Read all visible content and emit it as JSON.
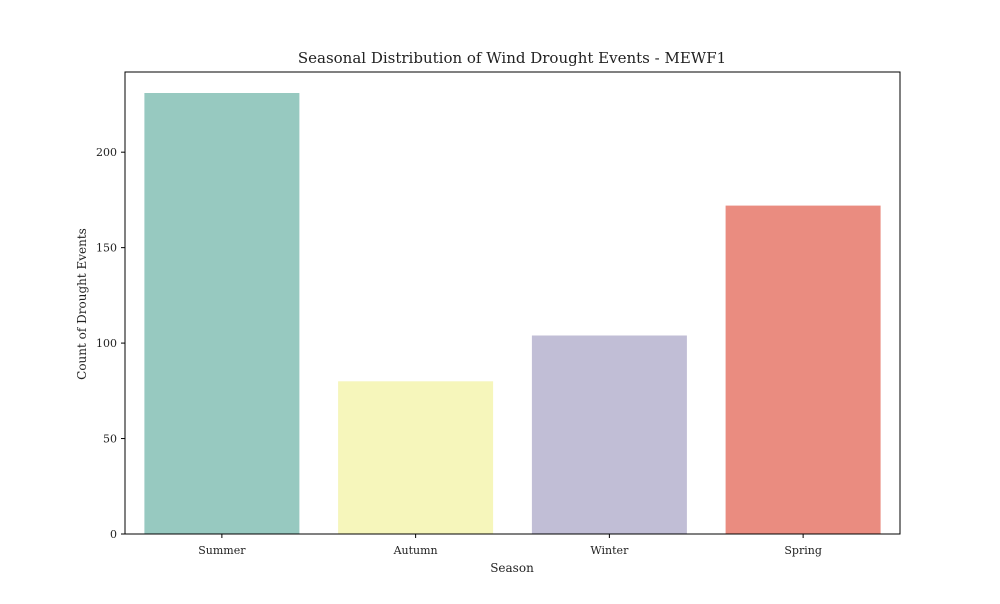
{
  "chart_data": {
    "type": "bar",
    "title": "Seasonal Distribution of Wind Drought Events - MEWF1",
    "xlabel": "Season",
    "ylabel": "Count of Drought Events",
    "categories": [
      "Summer",
      "Autumn",
      "Winter",
      "Spring"
    ],
    "values": [
      231,
      80,
      104,
      172
    ],
    "colors": [
      "#97c9c0",
      "#f6f6bb",
      "#c1bed6",
      "#ea8c80"
    ],
    "ylim": [
      0,
      242
    ],
    "yticks": [
      0,
      50,
      100,
      150,
      200
    ],
    "ytick_labels": [
      "0",
      "50",
      "100",
      "150",
      "200"
    ],
    "grid": false,
    "legend": "none"
  }
}
